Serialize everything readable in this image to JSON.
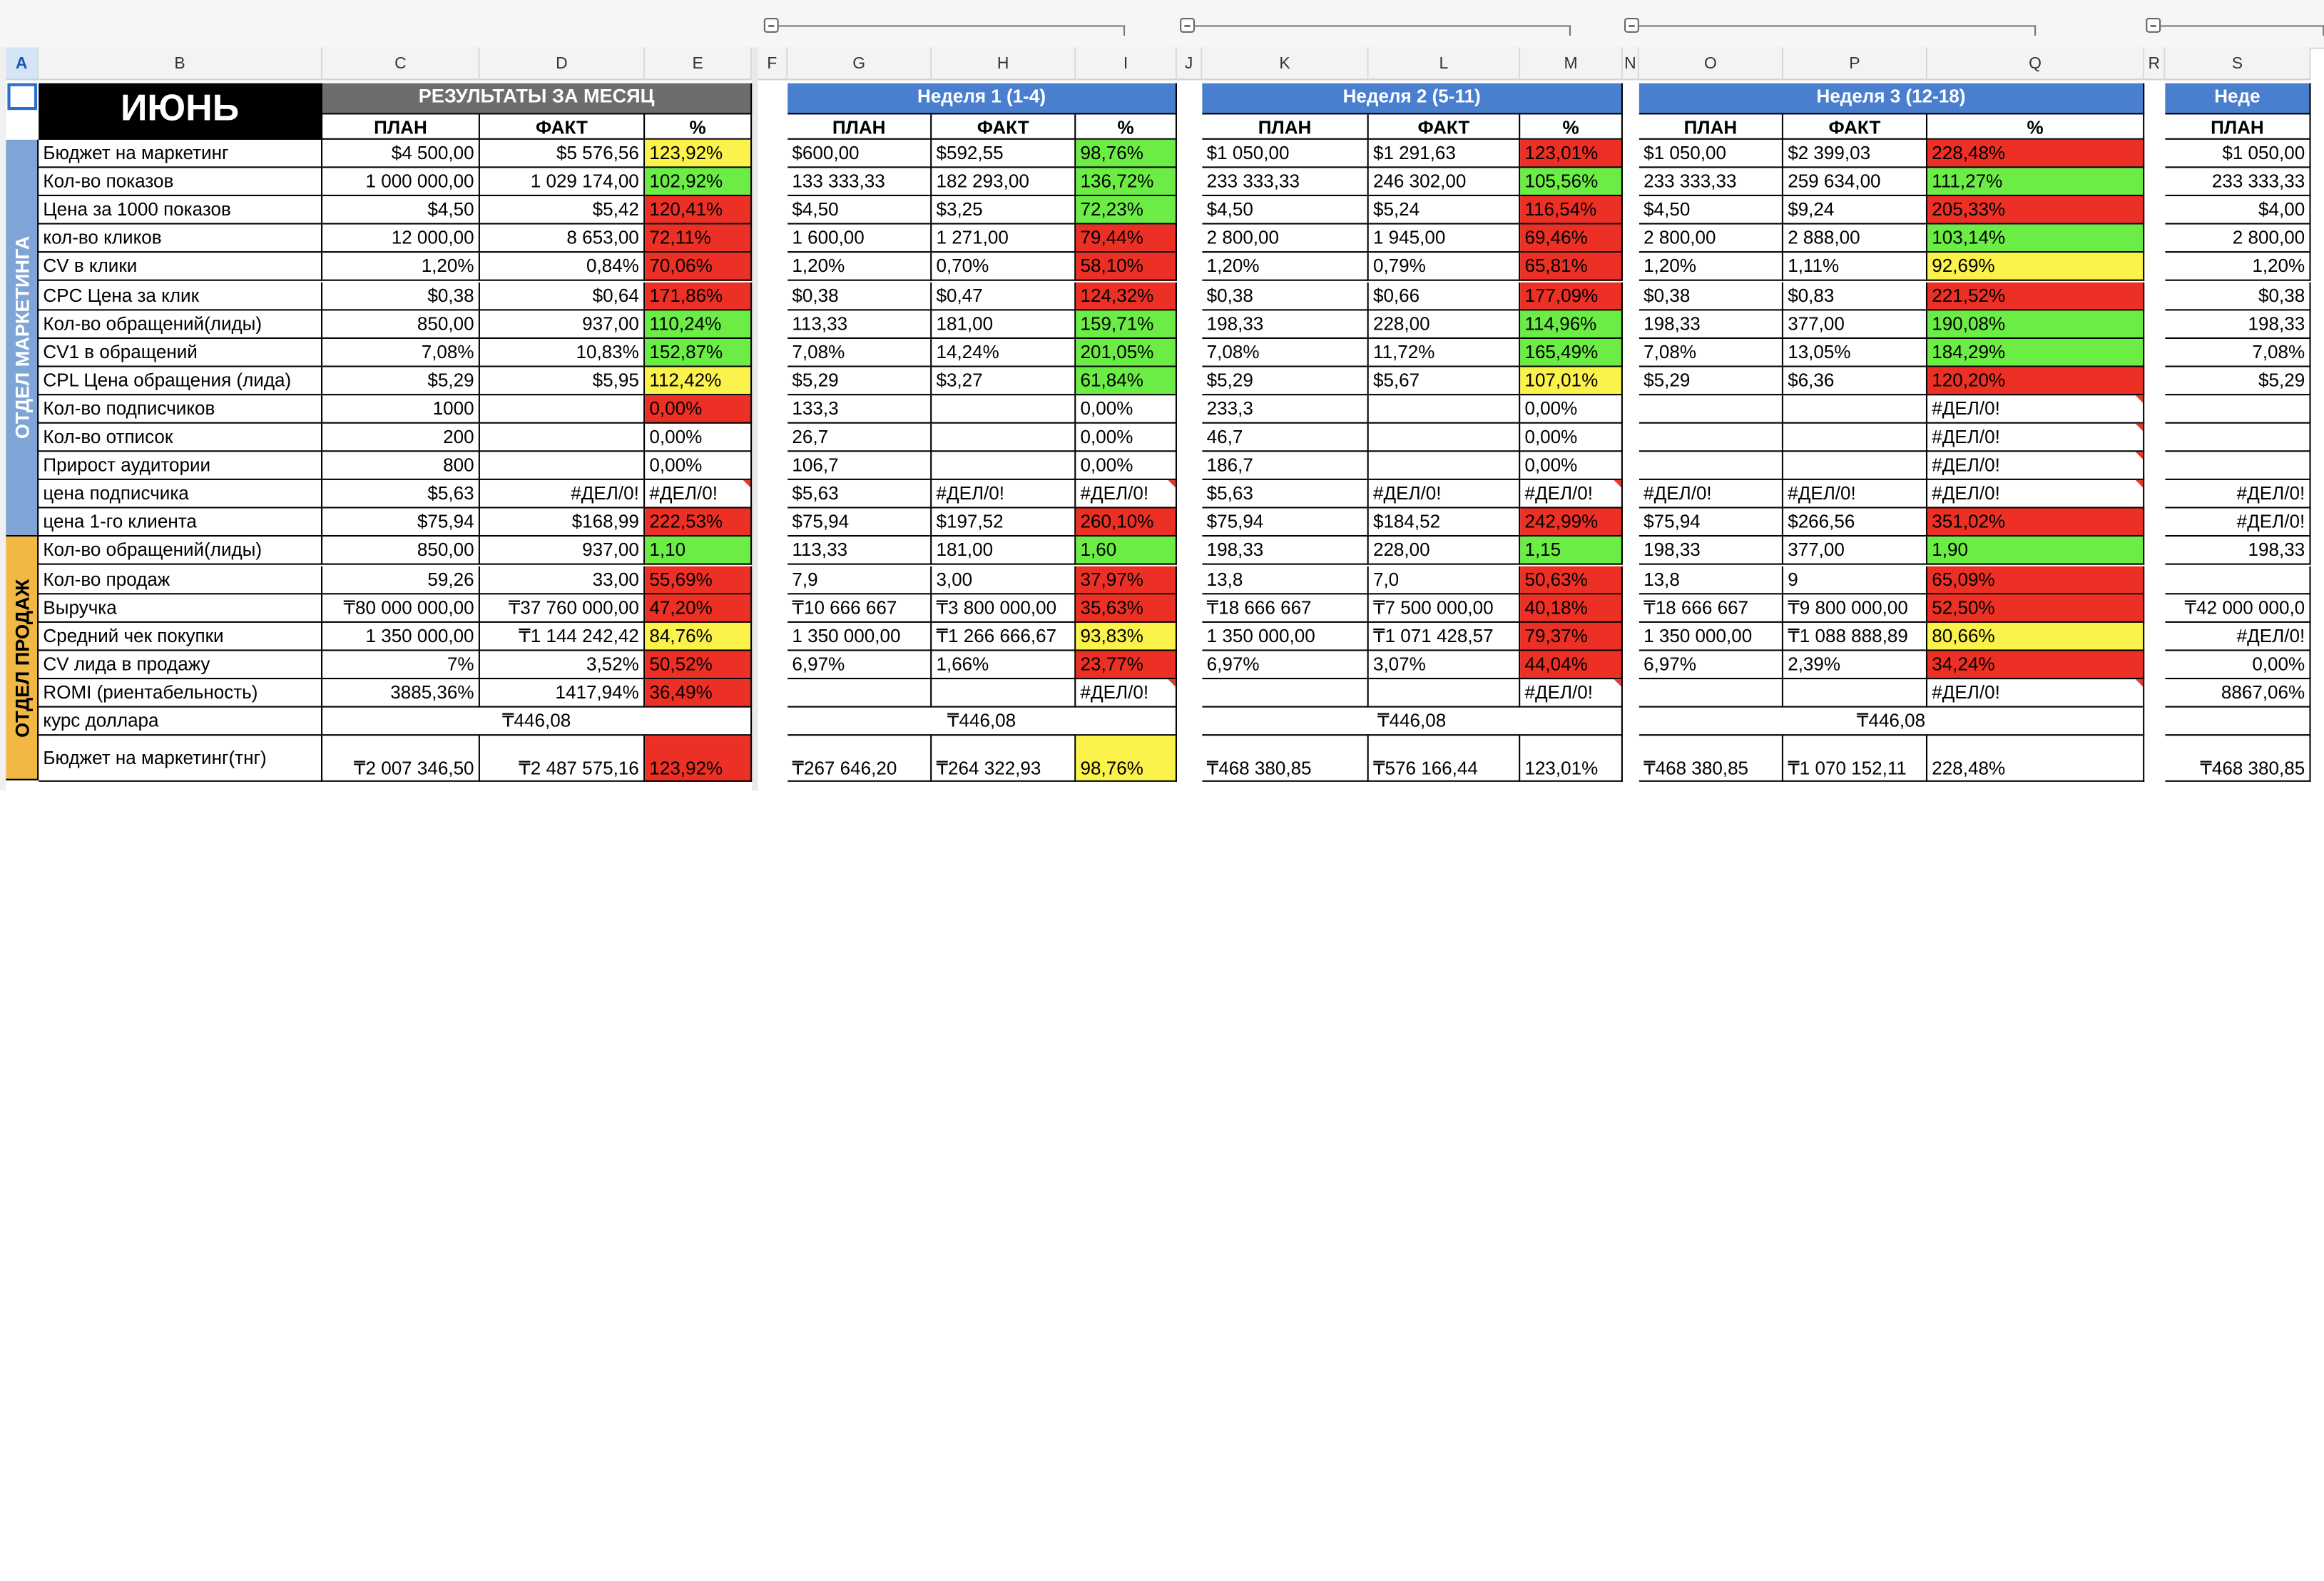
{
  "sheet_title": "ИЮНЬ",
  "columns": [
    "A",
    "B",
    "C",
    "D",
    "E",
    "F",
    "G",
    "H",
    "I",
    "J",
    "K",
    "L",
    "M",
    "N",
    "O",
    "P",
    "Q",
    "R",
    "S"
  ],
  "selected_column": "A",
  "sections": {
    "marketing": "ОТДЕЛ МАРКЕТИНГА",
    "sales": "ОТДЕЛ ПРОДАЖ"
  },
  "blocks": [
    {
      "title": "РЕЗУЛЬТАТЫ ЗА МЕСЯЦ",
      "sub": [
        "ПЛАН",
        "ФАКТ",
        "%"
      ]
    },
    {
      "title": "Неделя 1 (1-4)",
      "sub": [
        "ПЛАН",
        "ФАКТ",
        "%"
      ]
    },
    {
      "title": "Неделя 2 (5-11)",
      "sub": [
        "ПЛАН",
        "ФАКТ",
        "%"
      ]
    },
    {
      "title": "Неделя 3 (12-18)",
      "sub": [
        "ПЛАН",
        "ФАКТ",
        "%"
      ]
    },
    {
      "title": "Неде",
      "sub": [
        "ПЛАН"
      ]
    }
  ],
  "rows": [
    {
      "label": "Бюджет на маркетинг",
      "m": [
        "$4 500,00",
        "$5 576,56",
        "123,92%",
        "y"
      ],
      "w1": [
        "$600,00",
        "$592,55",
        "98,76%",
        "g"
      ],
      "w2": [
        "$1 050,00",
        "$1 291,63",
        "123,01%",
        "rd"
      ],
      "w3": [
        "$1 050,00",
        "$2 399,03",
        "228,48%",
        "rd"
      ],
      "w4": "$1 050,00"
    },
    {
      "label": "Кол-во показов",
      "m": [
        "1 000 000,00",
        "1 029 174,00",
        "102,92%",
        "g"
      ],
      "w1": [
        "133 333,33",
        "182 293,00",
        "136,72%",
        "g"
      ],
      "w2": [
        "233 333,33",
        "246 302,00",
        "105,56%",
        "g"
      ],
      "w3": [
        "233 333,33",
        "259 634,00",
        "111,27%",
        "g"
      ],
      "w4": "233 333,33"
    },
    {
      "label": "Цена за 1000 показов",
      "m": [
        "$4,50",
        "$5,42",
        "120,41%",
        "rd"
      ],
      "w1": [
        "$4,50",
        "$3,25",
        "72,23%",
        "g"
      ],
      "w2": [
        "$4,50",
        "$5,24",
        "116,54%",
        "rd"
      ],
      "w3": [
        "$4,50",
        "$9,24",
        "205,33%",
        "rd"
      ],
      "w4": "$4,00"
    },
    {
      "label": "кол-во кликов",
      "m": [
        "12 000,00",
        "8 653,00",
        "72,11%",
        "rd"
      ],
      "w1": [
        "1 600,00",
        "1 271,00",
        "79,44%",
        "rd"
      ],
      "w2": [
        "2 800,00",
        "1 945,00",
        "69,46%",
        "rd"
      ],
      "w3": [
        "2 800,00",
        "2 888,00",
        "103,14%",
        "g"
      ],
      "w4": "2 800,00"
    },
    {
      "label": "CV в клики",
      "m": [
        "1,20%",
        "0,84%",
        "70,06%",
        "rd"
      ],
      "w1": [
        "1,20%",
        "0,70%",
        "58,10%",
        "rd"
      ],
      "w2": [
        "1,20%",
        "0,79%",
        "65,81%",
        "rd"
      ],
      "w3": [
        "1,20%",
        "1,11%",
        "92,69%",
        "y"
      ],
      "w4": "1,20%"
    },
    {
      "label": "CPC Цена за клик",
      "m": [
        "$0,38",
        "$0,64",
        "171,86%",
        "rd"
      ],
      "w1": [
        "$0,38",
        "$0,47",
        "124,32%",
        "rd"
      ],
      "w2": [
        "$0,38",
        "$0,66",
        "177,09%",
        "rd"
      ],
      "w3": [
        "$0,38",
        "$0,83",
        "221,52%",
        "rd"
      ],
      "w4": "$0,38"
    },
    {
      "label": "Кол-во обращений(лиды)",
      "m": [
        "850,00",
        "937,00",
        "110,24%",
        "g"
      ],
      "w1": [
        "113,33",
        "181,00",
        "159,71%",
        "g"
      ],
      "w2": [
        "198,33",
        "228,00",
        "114,96%",
        "g"
      ],
      "w3": [
        "198,33",
        "377,00",
        "190,08%",
        "g"
      ],
      "w4": "198,33"
    },
    {
      "label": "CV1 в обращений",
      "m": [
        "7,08%",
        "10,83%",
        "152,87%",
        "g"
      ],
      "w1": [
        "7,08%",
        "14,24%",
        "201,05%",
        "g"
      ],
      "w2": [
        "7,08%",
        "11,72%",
        "165,49%",
        "g"
      ],
      "w3": [
        "7,08%",
        "13,05%",
        "184,29%",
        "g"
      ],
      "w4": "7,08%"
    },
    {
      "label": "CPL Цена обращения (лида)",
      "m": [
        "$5,29",
        "$5,95",
        "112,42%",
        "y"
      ],
      "w1": [
        "$5,29",
        "$3,27",
        "61,84%",
        "g"
      ],
      "w2": [
        "$5,29",
        "$5,67",
        "107,01%",
        "y"
      ],
      "w3": [
        "$5,29",
        "$6,36",
        "120,20%",
        "rd"
      ],
      "w4": "$5,29"
    },
    {
      "label": "Кол-во подписчиков",
      "m": [
        "1000",
        "",
        "0,00%",
        "rd"
      ],
      "w1": [
        "133,3",
        "",
        "0,00%",
        ""
      ],
      "w2": [
        "233,3",
        "",
        "0,00%",
        ""
      ],
      "w3": [
        "",
        "",
        "#ДЕЛ/0!",
        ""
      ],
      "w4": ""
    },
    {
      "label": "Кол-во отписок",
      "m": [
        "200",
        "",
        "0,00%",
        ""
      ],
      "w1": [
        "26,7",
        "",
        "0,00%",
        ""
      ],
      "w2": [
        "46,7",
        "",
        "0,00%",
        ""
      ],
      "w3": [
        "",
        "",
        "#ДЕЛ/0!",
        ""
      ],
      "w4": ""
    },
    {
      "label": "Прирост аудитории",
      "m": [
        "800",
        "",
        "0,00%",
        ""
      ],
      "w1": [
        "106,7",
        "",
        "0,00%",
        ""
      ],
      "w2": [
        "186,7",
        "",
        "0,00%",
        ""
      ],
      "w3": [
        "",
        "",
        "#ДЕЛ/0!",
        ""
      ],
      "w4": ""
    },
    {
      "label": "цена подписчика",
      "m": [
        "$5,63",
        "#ДЕЛ/0!",
        "#ДЕЛ/0!",
        ""
      ],
      "w1": [
        "$5,63",
        "#ДЕЛ/0!",
        "#ДЕЛ/0!",
        ""
      ],
      "w2": [
        "$5,63",
        "#ДЕЛ/0!",
        "#ДЕЛ/0!",
        ""
      ],
      "w3": [
        "#ДЕЛ/0!",
        "#ДЕЛ/0!",
        "#ДЕЛ/0!",
        ""
      ],
      "w4": "#ДЕЛ/0!"
    },
    {
      "label": "цена 1-го клиента",
      "m": [
        "$75,94",
        "$168,99",
        "222,53%",
        "rd"
      ],
      "w1": [
        "$75,94",
        "$197,52",
        "260,10%",
        "rd"
      ],
      "w2": [
        "$75,94",
        "$184,52",
        "242,99%",
        "rd"
      ],
      "w3": [
        "$75,94",
        "$266,56",
        "351,02%",
        "rd"
      ],
      "w4": "#ДЕЛ/0!"
    },
    {
      "label": "Кол-во обращений(лиды)",
      "m": [
        "850,00",
        "937,00",
        "1,10",
        "g"
      ],
      "w1": [
        "113,33",
        "181,00",
        "1,60",
        "g"
      ],
      "w2": [
        "198,33",
        "228,00",
        "1,15",
        "g"
      ],
      "w3": [
        "198,33",
        "377,00",
        "1,90",
        "g"
      ],
      "w4": "198,33"
    },
    {
      "label": "Кол-во продаж",
      "m": [
        "59,26",
        "33,00",
        "55,69%",
        "rd"
      ],
      "w1": [
        "7,9",
        "3,00",
        "37,97%",
        "rd"
      ],
      "w2": [
        "13,8",
        "7,0",
        "50,63%",
        "rd"
      ],
      "w3": [
        "13,8",
        "9",
        "65,09%",
        "rd"
      ],
      "w4": ""
    },
    {
      "label": "Выручка",
      "m": [
        "₸80 000 000,00",
        "₸37 760 000,00",
        "47,20%",
        "rd"
      ],
      "w1": [
        "₸10 666 667",
        "₸3 800 000,00",
        "35,63%",
        "rd"
      ],
      "w2": [
        "₸18 666 667",
        "₸7 500 000,00",
        "40,18%",
        "rd"
      ],
      "w3": [
        "₸18 666 667",
        "₸9 800 000,00",
        "52,50%",
        "rd"
      ],
      "w4": "₸42 000 000,0"
    },
    {
      "label": "Средний чек покупки",
      "m": [
        "1 350 000,00",
        "₸1 144 242,42",
        "84,76%",
        "y"
      ],
      "w1": [
        "1 350 000,00",
        "₸1 266 666,67",
        "93,83%",
        "y"
      ],
      "w2": [
        "1 350 000,00",
        "₸1 071 428,57",
        "79,37%",
        "rd"
      ],
      "w3": [
        "1 350 000,00",
        "₸1 088 888,89",
        "80,66%",
        "y"
      ],
      "w4": "#ДЕЛ/0!"
    },
    {
      "label": "CV лида в продажу",
      "m": [
        "7%",
        "3,52%",
        "50,52%",
        "rd"
      ],
      "w1": [
        "6,97%",
        "1,66%",
        "23,77%",
        "rd"
      ],
      "w2": [
        "6,97%",
        "3,07%",
        "44,04%",
        "rd"
      ],
      "w3": [
        "6,97%",
        "2,39%",
        "34,24%",
        "rd"
      ],
      "w4": "0,00%"
    },
    {
      "label": "ROMI (риентабельность)",
      "m": [
        "3885,36%",
        "1417,94%",
        "36,49%",
        "rd"
      ],
      "w1": [
        "",
        "",
        "#ДЕЛ/0!",
        ""
      ],
      "w2": [
        "",
        "",
        "#ДЕЛ/0!",
        ""
      ],
      "w3": [
        "",
        "",
        "#ДЕЛ/0!",
        ""
      ],
      "w4": "8867,06%"
    }
  ],
  "dollar_rate": {
    "label": "курс доллара",
    "m": "₸446,08",
    "w1": "₸446,08",
    "w2": "₸446,08",
    "w3": "₸446,08"
  },
  "budget_tng": {
    "label": "Бюджет на маркетинг(тнг)",
    "m": [
      "₸2 007 346,50",
      "₸2 487 575,16",
      "123,92%",
      "rd"
    ],
    "w1": [
      "₸267 646,20",
      "₸264 322,93",
      "98,76%",
      "y"
    ],
    "w2": [
      "₸468 380,85",
      "₸576 166,44",
      "123,01%",
      ""
    ],
    "w3": [
      "₸468 380,85",
      "₸1 070 152,11",
      "228,48%",
      ""
    ],
    "w4": "₸468 380,85"
  }
}
